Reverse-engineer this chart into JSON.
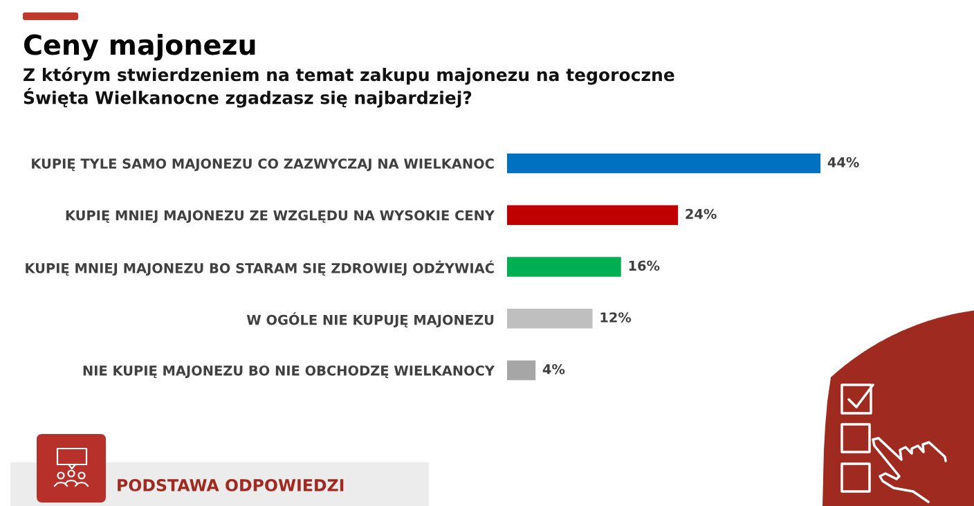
{
  "chart_data": {
    "type": "bar",
    "orientation": "horizontal",
    "title": "Ceny majonezu",
    "subtitle": "Z którym stwierdzeniem na temat zakupu majonezu na tegoroczne\nŚwięta Wielkanocne zgadzasz się najbardziej?",
    "categories": [
      "KUPIĘ TYLE SAMO MAJONEZU CO ZAZWYCZAJ NA WIELKANOC",
      "KUPIĘ MNIEJ MAJONEZU ZE WZGLĘDU NA WYSOKIE CENY",
      "KUPIĘ MNIEJ MAJONEZU BO STARAM SIĘ ZDROWIEJ ODŻYWIAĆ",
      "W OGÓLE NIE KUPUJĘ MAJONEZU",
      "NIE KUPIĘ MAJONEZU BO NIE OBCHODZĘ WIELKANOCY"
    ],
    "values": [
      44,
      24,
      16,
      12,
      4
    ],
    "colors": [
      "#0070c0",
      "#c00000",
      "#00b050",
      "#bfbfbf",
      "#a6a6a6"
    ],
    "value_labels": [
      "44%",
      "24%",
      "16%",
      "12%",
      "4%"
    ],
    "tick_labels": "y",
    "annotations": [
      "PODSTAWA ODPOWIEDZI"
    ]
  }
}
